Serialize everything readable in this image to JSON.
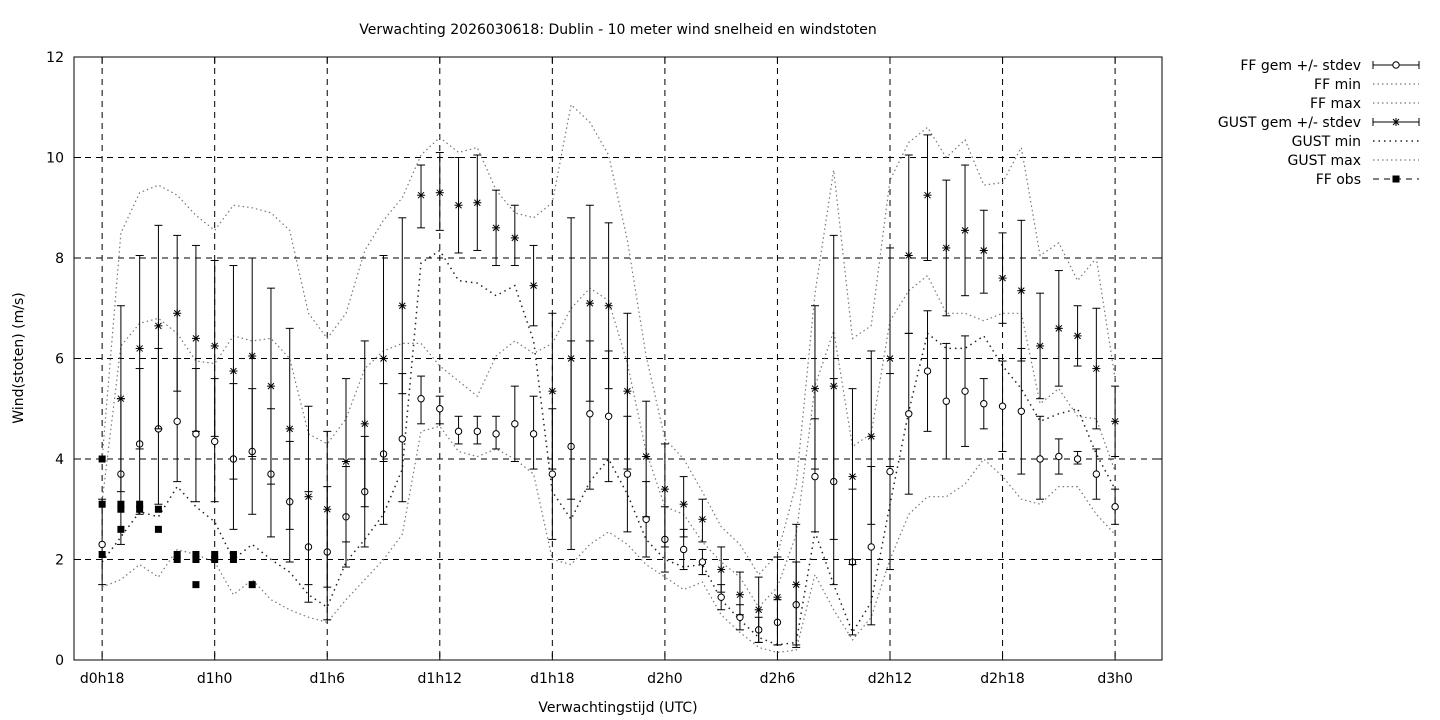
{
  "chart_data": {
    "type": "line",
    "title": "Verwachting 2026030618: Dublin - 10 meter wind snelheid en windstoten",
    "xlabel": "Verwachtingstijd (UTC)",
    "ylabel": "Wind(stoten) (m/s)",
    "ylim": [
      0,
      12
    ],
    "yticks": [
      0,
      2,
      4,
      6,
      8,
      10,
      12
    ],
    "xlim_hours": [
      -1.5,
      56.5
    ],
    "xticks": [
      {
        "hour": 0,
        "label": "d0h18"
      },
      {
        "hour": 6,
        "label": "d1h0"
      },
      {
        "hour": 12,
        "label": "d1h6"
      },
      {
        "hour": 18,
        "label": "d1h12"
      },
      {
        "hour": 24,
        "label": "d1h18"
      },
      {
        "hour": 30,
        "label": "d2h0"
      },
      {
        "hour": 36,
        "label": "d2h6"
      },
      {
        "hour": 42,
        "label": "d2h12"
      },
      {
        "hour": 48,
        "label": "d2h18"
      },
      {
        "hour": 54,
        "label": "d3h0"
      }
    ],
    "grid": true,
    "legend_position": "outside-right",
    "legend": [
      {
        "name": "FF gem +/- stdev",
        "style": "circle-errorbar"
      },
      {
        "name": "FF min",
        "style": "dotted"
      },
      {
        "name": "FF max",
        "style": "dotted"
      },
      {
        "name": "GUST gem +/- stdev",
        "style": "star-errorbar"
      },
      {
        "name": "GUST min",
        "style": "dotted-heavy"
      },
      {
        "name": "GUST max",
        "style": "dotted"
      },
      {
        "name": "FF obs",
        "style": "square-dashed"
      }
    ],
    "x_hours": [
      0,
      1,
      2,
      3,
      4,
      5,
      6,
      7,
      8,
      9,
      10,
      11,
      12,
      13,
      14,
      15,
      16,
      17,
      18,
      19,
      20,
      21,
      22,
      23,
      24,
      25,
      26,
      27,
      28,
      29,
      30,
      31,
      32,
      33,
      34,
      35,
      36,
      37,
      38,
      39,
      40,
      41,
      42,
      43,
      44,
      45,
      46,
      47,
      48,
      49,
      50,
      51,
      52,
      53,
      54
    ],
    "series": [
      {
        "name": "FF gem +/- stdev",
        "values": [
          2.3,
          3.7,
          4.3,
          4.6,
          4.75,
          4.5,
          4.35,
          4.0,
          4.15,
          3.7,
          3.15,
          2.25,
          2.15,
          2.85,
          3.35,
          4.1,
          4.4,
          5.2,
          5.0,
          4.55,
          4.55,
          4.5,
          4.7,
          4.5,
          3.7,
          4.25,
          4.9,
          4.85,
          3.7,
          2.8,
          2.4,
          2.2,
          1.95,
          1.25,
          0.85,
          0.6,
          0.75,
          1.1,
          3.65,
          3.55,
          1.95,
          2.25,
          3.75,
          4.9,
          5.75,
          5.15,
          5.35,
          5.1,
          5.05,
          4.95,
          4.0,
          4.05,
          4.0,
          3.7,
          3.05
        ],
        "lower": [
          1.5,
          2.3,
          2.9,
          3.1,
          3.55,
          3.15,
          3.15,
          2.6,
          2.9,
          2.45,
          1.95,
          1.15,
          0.8,
          1.85,
          2.25,
          2.7,
          3.15,
          4.7,
          4.7,
          4.3,
          4.3,
          4.2,
          3.95,
          3.8,
          2.4,
          2.2,
          3.4,
          3.55,
          2.55,
          2.05,
          1.75,
          1.8,
          1.7,
          1.0,
          0.6,
          0.35,
          0.3,
          0.25,
          2.55,
          1.5,
          0.5,
          0.7,
          1.8,
          3.3,
          4.55,
          4.0,
          4.25,
          4.6,
          4.15,
          3.7,
          3.2,
          3.7,
          3.9,
          3.2,
          2.7
        ],
        "upper": [
          3.2,
          5.2,
          5.8,
          6.2,
          6.0,
          5.8,
          5.6,
          5.5,
          5.4,
          5.0,
          4.35,
          3.35,
          3.45,
          3.85,
          4.45,
          5.5,
          5.7,
          5.65,
          5.25,
          4.85,
          4.85,
          4.85,
          5.45,
          5.25,
          5.0,
          6.35,
          6.35,
          6.15,
          4.85,
          3.55,
          3.05,
          2.6,
          2.2,
          1.5,
          1.1,
          0.85,
          1.2,
          1.95,
          4.8,
          5.6,
          3.4,
          3.85,
          5.7,
          6.5,
          6.95,
          6.3,
          6.45,
          5.6,
          5.95,
          6.2,
          4.85,
          4.4,
          4.15,
          4.2,
          3.4
        ]
      },
      {
        "name": "GUST gem +/- stdev",
        "values": [
          null,
          5.2,
          6.2,
          6.65,
          6.9,
          6.4,
          6.25,
          5.75,
          6.05,
          5.45,
          4.6,
          3.25,
          3.0,
          3.95,
          4.7,
          6.0,
          7.05,
          9.25,
          9.3,
          9.05,
          9.1,
          8.6,
          8.4,
          7.45,
          5.35,
          6.0,
          7.1,
          7.05,
          5.35,
          4.05,
          3.4,
          3.1,
          2.8,
          1.8,
          1.3,
          1.0,
          1.25,
          1.5,
          5.4,
          5.45,
          3.65,
          4.45,
          6.0,
          8.05,
          9.25,
          8.2,
          8.55,
          8.15,
          7.6,
          7.35,
          6.25,
          6.6,
          6.45,
          5.8,
          4.75
        ],
        "lower": [
          null,
          3.35,
          4.2,
          4.6,
          5.35,
          4.55,
          4.45,
          3.6,
          4.05,
          3.5,
          2.6,
          1.5,
          1.45,
          2.35,
          3.05,
          3.95,
          5.3,
          8.6,
          8.55,
          8.1,
          8.15,
          7.85,
          7.85,
          6.65,
          3.8,
          3.2,
          5.15,
          5.4,
          3.8,
          2.85,
          2.25,
          2.45,
          2.35,
          1.35,
          0.9,
          0.35,
          0.3,
          0.3,
          3.8,
          2.4,
          1.9,
          2.7,
          3.85,
          6.5,
          7.95,
          6.85,
          7.25,
          7.3,
          6.7,
          5.95,
          5.2,
          5.45,
          5.85,
          4.6,
          4.05
        ],
        "upper": [
          null,
          7.05,
          8.05,
          8.65,
          8.45,
          8.25,
          7.95,
          7.85,
          8.0,
          7.4,
          6.6,
          5.05,
          4.55,
          5.6,
          6.35,
          8.05,
          8.8,
          9.85,
          10.1,
          10.0,
          10.05,
          9.35,
          9.05,
          8.25,
          6.9,
          8.8,
          9.05,
          8.7,
          6.9,
          5.15,
          4.3,
          3.65,
          3.2,
          2.25,
          1.75,
          1.65,
          2.05,
          2.7,
          7.05,
          8.45,
          5.4,
          6.15,
          8.2,
          10.05,
          10.45,
          9.55,
          9.85,
          8.95,
          8.5,
          8.75,
          7.3,
          7.75,
          7.05,
          7.0,
          5.45
        ]
      },
      {
        "name": "FF min",
        "values": [
          1.45,
          1.6,
          1.9,
          1.65,
          2.2,
          2.1,
          1.95,
          1.3,
          1.6,
          1.2,
          1.0,
          0.85,
          0.75,
          1.2,
          1.6,
          2.0,
          2.5,
          4.55,
          4.65,
          4.15,
          4.05,
          4.2,
          4.0,
          3.7,
          2.0,
          1.9,
          2.3,
          2.55,
          2.3,
          1.9,
          1.65,
          1.4,
          1.55,
          0.9,
          0.55,
          0.25,
          0.15,
          0.2,
          1.7,
          1.0,
          0.4,
          0.85,
          2.0,
          2.9,
          3.25,
          3.25,
          3.5,
          4.0,
          3.65,
          3.2,
          3.1,
          3.45,
          3.45,
          2.9,
          2.5
        ]
      },
      {
        "name": "FF max",
        "values": [
          3.15,
          6.25,
          6.7,
          6.8,
          6.5,
          5.95,
          5.9,
          6.45,
          6.35,
          6.4,
          6.0,
          4.5,
          4.3,
          4.8,
          5.8,
          6.15,
          6.3,
          6.3,
          5.85,
          5.55,
          5.25,
          6.05,
          6.35,
          6.1,
          6.3,
          7.0,
          7.4,
          7.15,
          5.9,
          4.15,
          3.05,
          2.9,
          2.35,
          1.95,
          1.65,
          1.05,
          1.45,
          2.5,
          5.45,
          6.55,
          4.25,
          4.5,
          6.75,
          7.35,
          7.65,
          6.9,
          6.9,
          6.75,
          6.9,
          6.9,
          5.1,
          5.4,
          4.85,
          4.8,
          3.75
        ]
      },
      {
        "name": "GUST min",
        "values": [
          1.95,
          2.45,
          2.95,
          2.85,
          3.45,
          3.05,
          2.75,
          2.0,
          2.3,
          2.0,
          1.75,
          1.3,
          1.05,
          1.95,
          2.4,
          2.9,
          3.8,
          7.9,
          8.15,
          7.55,
          7.5,
          7.25,
          7.45,
          6.35,
          3.35,
          2.8,
          3.55,
          4.0,
          3.3,
          2.4,
          2.0,
          1.85,
          1.9,
          1.2,
          0.8,
          0.45,
          0.3,
          0.35,
          2.55,
          1.5,
          0.55,
          1.15,
          3.1,
          4.95,
          6.5,
          6.2,
          6.2,
          6.45,
          5.85,
          5.4,
          4.75,
          4.9,
          5.0,
          4.1,
          3.4
        ]
      },
      {
        "name": "GUST max",
        "values": [
          4.0,
          8.5,
          9.3,
          9.45,
          9.25,
          8.85,
          8.55,
          9.05,
          9.0,
          8.9,
          8.55,
          6.9,
          6.4,
          6.9,
          8.15,
          8.75,
          9.2,
          10.05,
          10.4,
          10.1,
          10.2,
          9.35,
          8.9,
          8.8,
          9.1,
          11.05,
          10.7,
          10.05,
          8.35,
          6.05,
          4.4,
          4.0,
          3.35,
          2.65,
          2.3,
          1.7,
          2.1,
          3.5,
          7.3,
          9.75,
          6.4,
          6.65,
          9.55,
          10.3,
          10.6,
          10.0,
          10.35,
          9.45,
          9.5,
          10.2,
          8.05,
          8.3,
          7.55,
          8.0,
          5.6
        ]
      },
      {
        "name": "FF obs",
        "points": [
          [
            0,
            4.0
          ],
          [
            0,
            3.1
          ],
          [
            0,
            2.1
          ],
          [
            1,
            3.1
          ],
          [
            1,
            3.0
          ],
          [
            1,
            2.6
          ],
          [
            2,
            3.1
          ],
          [
            2,
            3.0
          ],
          [
            3,
            3.0
          ],
          [
            3,
            2.6
          ],
          [
            4,
            2.1
          ],
          [
            4,
            2.0
          ],
          [
            5,
            2.1
          ],
          [
            5,
            2.0
          ],
          [
            5,
            1.5
          ],
          [
            6,
            2.1
          ],
          [
            6,
            2.0
          ],
          [
            7,
            2.1
          ],
          [
            7,
            2.0
          ],
          [
            8,
            1.5
          ]
        ]
      }
    ]
  }
}
